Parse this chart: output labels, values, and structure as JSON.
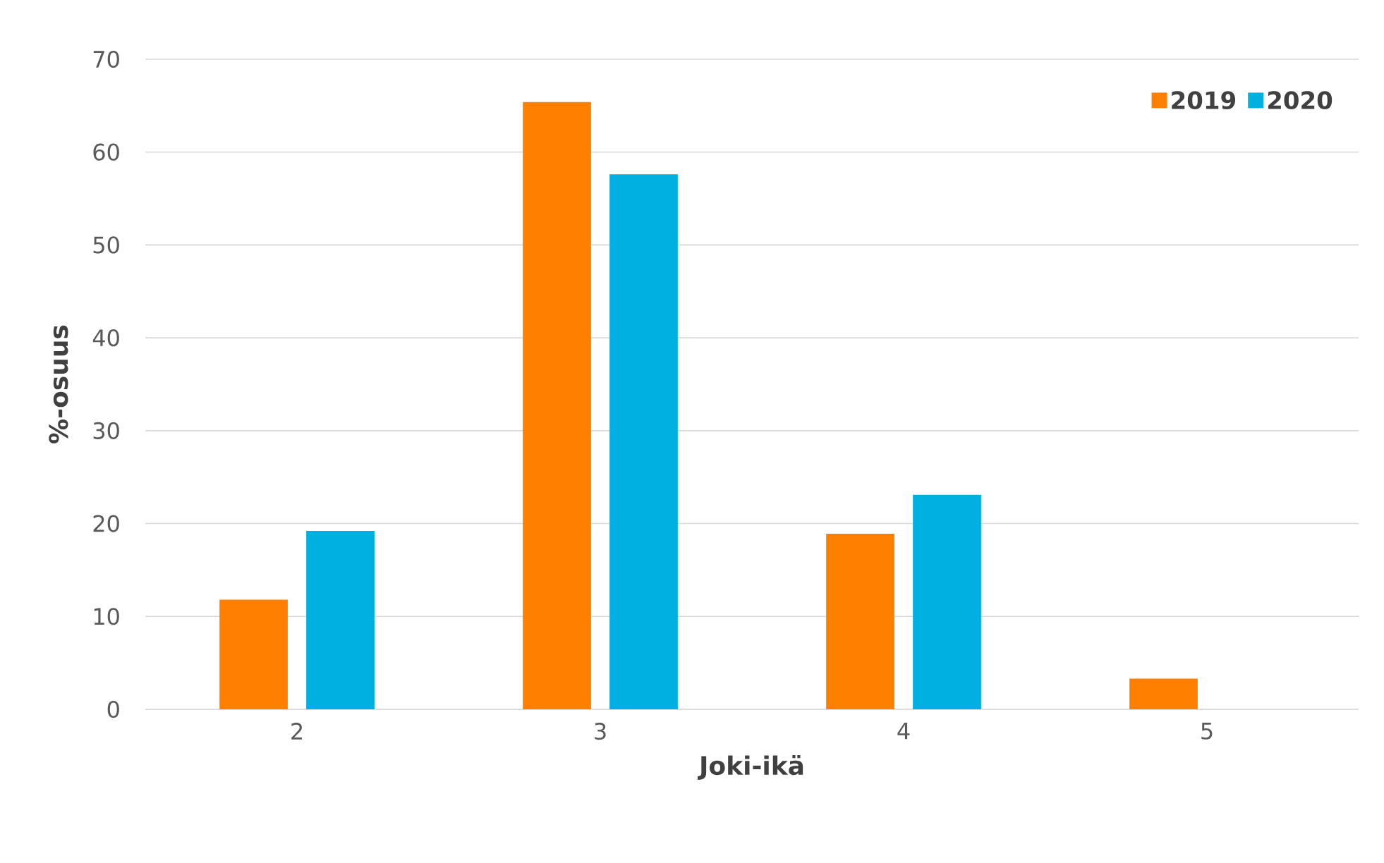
{
  "chart_data": {
    "type": "bar",
    "xlabel": "Joki-ikä",
    "ylabel": "%-osuus",
    "categories": [
      "2",
      "3",
      "4",
      "5"
    ],
    "series": [
      {
        "name": "2019",
        "color": "#ff8000",
        "values": [
          11.8,
          65.4,
          18.9,
          3.3
        ]
      },
      {
        "name": "2020",
        "color": "#00b0e0",
        "values": [
          19.2,
          57.6,
          23.1,
          null
        ]
      }
    ],
    "ylim": [
      0,
      70
    ],
    "yticks": [
      0,
      10,
      20,
      30,
      40,
      50,
      60,
      70
    ],
    "grid": "y",
    "legend": "top right"
  }
}
